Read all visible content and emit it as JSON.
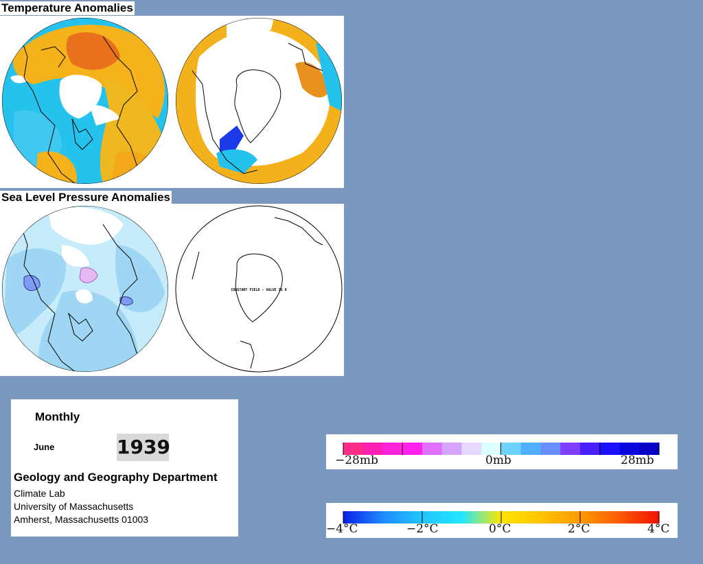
{
  "temperature_section": {
    "title": "Temperature Anomalies"
  },
  "pressure_section": {
    "title": "Sea Level Pressure Anomalies"
  },
  "maps": {
    "nh_temperature": "northern-hemisphere-temperature-map",
    "sh_temperature": "southern-hemisphere-temperature-map",
    "nh_pressure": "northern-hemisphere-pressure-map",
    "sh_pressure": "southern-hemisphere-pressure-map",
    "sh_pressure_note": "CONSTANT FIELD - VALUE IS 0"
  },
  "info": {
    "period": "Monthly",
    "month": "June",
    "year": "1939",
    "department": "Geology and Geography Department",
    "lab": "Climate Lab",
    "university": "University of Massachusetts",
    "address": "Amherst, Massachusetts 01003"
  },
  "pressure_scale": {
    "labels": {
      "min": "−28mb",
      "mid": "0mb",
      "max": "28mb"
    },
    "colors": [
      "#ff2d8a",
      "#ff1fb0",
      "#ff22d6",
      "#ff22ea",
      "#e070ff",
      "#d6a3ff",
      "#e6d9ff",
      "#d9ffff",
      "#6fd3ff",
      "#4fb0ff",
      "#6c8fff",
      "#7e3dff",
      "#4a1fff",
      "#1b10ff",
      "#0a06e0",
      "#0800c4"
    ]
  },
  "temperature_scale": {
    "labels": {
      "m4": "−4°C",
      "m2": "−2°C",
      "zero": "0°C",
      "p2": "2°C",
      "p4": "4°C"
    },
    "gradient": [
      "#0a1fe8",
      "#1f8bff",
      "#22c6ff",
      "#20e6ff",
      "#ffe600",
      "#ffc400",
      "#ff9a00",
      "#ff5a00",
      "#ee1200"
    ]
  }
}
